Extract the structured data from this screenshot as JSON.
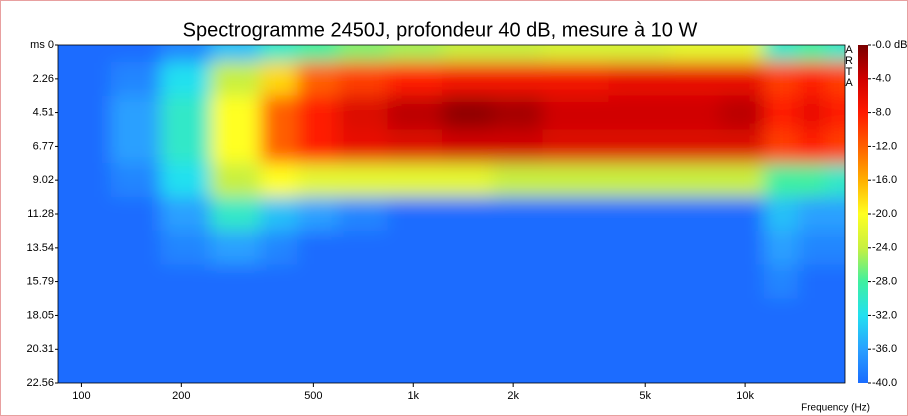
{
  "chart_data": {
    "type": "heatmap",
    "title": "Spectrogramme 2450J, profondeur 40 dB, mesure à 10 W",
    "x_label": "Frequency (Hz)",
    "watermark": "ARTA",
    "x": [
      100,
      150,
      200,
      300,
      400,
      500,
      700,
      1000,
      1500,
      2000,
      3000,
      5000,
      7000,
      10000,
      13000,
      16000,
      19000
    ],
    "y": [
      0,
      2.26,
      4.51,
      6.77,
      9.02,
      11.28,
      13.54,
      15.79,
      18.05,
      20.31,
      22.56
    ],
    "values": [
      [
        -40,
        -40,
        -38,
        -34,
        -30,
        -28,
        -26,
        -25,
        -24,
        -24,
        -23,
        -23,
        -22,
        -22,
        -30,
        -28,
        -30
      ],
      [
        -40,
        -38,
        -32,
        -24,
        -18,
        -12,
        -10,
        -8,
        -7,
        -7,
        -7,
        -6,
        -6,
        -6,
        -10,
        -8,
        -10
      ],
      [
        -40,
        -36,
        -30,
        -20,
        -12,
        -8,
        -5,
        -3,
        -1,
        -2,
        -4,
        -4,
        -4,
        -3,
        -8,
        -6,
        -8
      ],
      [
        -40,
        -36,
        -30,
        -20,
        -12,
        -8,
        -6,
        -5,
        -4,
        -4,
        -5,
        -5,
        -5,
        -5,
        -10,
        -8,
        -10
      ],
      [
        -40,
        -38,
        -32,
        -24,
        -20,
        -22,
        -22,
        -22,
        -22,
        -24,
        -24,
        -24,
        -24,
        -24,
        -28,
        -28,
        -30
      ],
      [
        -40,
        -40,
        -36,
        -30,
        -34,
        -36,
        -38,
        -40,
        -40,
        -40,
        -40,
        -40,
        -40,
        -40,
        -34,
        -36,
        -36
      ],
      [
        -40,
        -40,
        -38,
        -36,
        -38,
        -40,
        -40,
        -40,
        -40,
        -40,
        -40,
        -40,
        -40,
        -40,
        -36,
        -38,
        -38
      ],
      [
        -40,
        -40,
        -40,
        -40,
        -40,
        -40,
        -40,
        -40,
        -40,
        -40,
        -40,
        -40,
        -40,
        -40,
        -38,
        -40,
        -40
      ],
      [
        -40,
        -40,
        -40,
        -40,
        -40,
        -40,
        -40,
        -40,
        -40,
        -40,
        -40,
        -40,
        -40,
        -40,
        -40,
        -40,
        -40
      ],
      [
        -40,
        -40,
        -40,
        -40,
        -40,
        -40,
        -40,
        -40,
        -40,
        -40,
        -40,
        -40,
        -40,
        -40,
        -40,
        -40,
        -40
      ],
      [
        -40,
        -40,
        -40,
        -40,
        -40,
        -40,
        -40,
        -40,
        -40,
        -40,
        -40,
        -40,
        -40,
        -40,
        -40,
        -40,
        -40
      ]
    ],
    "xlim": [
      85,
      20000
    ],
    "x_log": true,
    "xticks": [
      100,
      200,
      500,
      {
        "value": 1000,
        "label": "1k"
      },
      {
        "value": 2000,
        "label": "2k"
      },
      {
        "value": 5000,
        "label": "5k"
      },
      {
        "value": 10000,
        "label": "10k"
      }
    ],
    "ylim": [
      0,
      22.56
    ],
    "y_inverted": true,
    "yticks": [
      {
        "value": 0,
        "label": "ms 0"
      },
      2.26,
      4.51,
      6.77,
      9.02,
      11.28,
      13.54,
      15.79,
      18.05,
      20.31,
      22.56
    ],
    "clim": [
      -40,
      0
    ],
    "cticks": [
      {
        "value": 0,
        "label": "-0.0 dB"
      },
      {
        "value": -4,
        "label": "-4.0"
      },
      {
        "value": -8,
        "label": "-8.0"
      },
      {
        "value": -12,
        "label": "-12.0"
      },
      {
        "value": -16,
        "label": "-16.0"
      },
      {
        "value": -20,
        "label": "-20.0"
      },
      {
        "value": -24,
        "label": "-24.0"
      },
      {
        "value": -28,
        "label": "-28.0"
      },
      {
        "value": -32,
        "label": "-32.0"
      },
      {
        "value": -36,
        "label": "-36.0"
      },
      {
        "value": -40,
        "label": "-40.0"
      }
    ],
    "colorscale": [
      "#1a6cff",
      "#2aa0ff",
      "#22e0f0",
      "#40f0a0",
      "#c8f040",
      "#ffff20",
      "#ffb000",
      "#ff6000",
      "#ff1a00",
      "#d00000",
      "#7a0000"
    ]
  }
}
